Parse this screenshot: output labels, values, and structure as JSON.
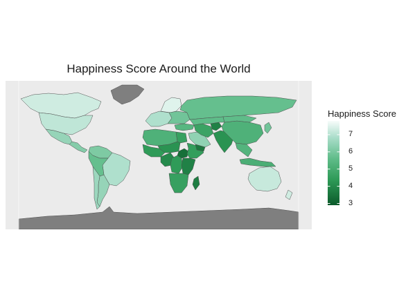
{
  "title": "Happiness Score Around the World",
  "legend": {
    "title": "Happiness Score",
    "ticks": [
      "7",
      "6",
      "5",
      "4",
      "3"
    ],
    "tick_values": [
      7,
      6,
      5,
      4,
      3
    ],
    "range": [
      2.9,
      7.8
    ],
    "colors": {
      "low": "#0b5a2a",
      "mid_low": "#2e9a57",
      "mid": "#5fbc89",
      "mid_high": "#a9ddc9",
      "high": "#f7fcfb",
      "no_data": "#7f7f7f",
      "panel": "#ebebeb"
    }
  },
  "regions": [
    {
      "name": "Canada",
      "score": 7.3
    },
    {
      "name": "United States",
      "score": 7.1
    },
    {
      "name": "Mexico",
      "score": 6.5
    },
    {
      "name": "Central America",
      "score": 6.2
    },
    {
      "name": "Colombia / Venezuela",
      "score": 6.1
    },
    {
      "name": "Brazil",
      "score": 6.9
    },
    {
      "name": "Peru / Bolivia",
      "score": 5.7
    },
    {
      "name": "Argentina",
      "score": 6.5
    },
    {
      "name": "Chile",
      "score": 6.6
    },
    {
      "name": "Greenland",
      "score": null
    },
    {
      "name": "Western Europe",
      "score": 6.9
    },
    {
      "name": "Scandinavia",
      "score": 7.5
    },
    {
      "name": "Eastern Europe",
      "score": 5.9
    },
    {
      "name": "Russia",
      "score": 5.7
    },
    {
      "name": "Turkey",
      "score": 5.4
    },
    {
      "name": "North Africa",
      "score": 5.2
    },
    {
      "name": "Egypt",
      "score": 4.6
    },
    {
      "name": "West Africa",
      "score": 4.4
    },
    {
      "name": "Sahel",
      "score": 4.2
    },
    {
      "name": "Central Africa",
      "score": 4.0
    },
    {
      "name": "South Sudan",
      "score": 3.4
    },
    {
      "name": "Ethiopia / Horn",
      "score": 4.5
    },
    {
      "name": "DR Congo",
      "score": 4.4
    },
    {
      "name": "East Africa",
      "score": 3.8
    },
    {
      "name": "Southern Africa",
      "score": 4.6
    },
    {
      "name": "Madagascar",
      "score": 3.7
    },
    {
      "name": "Arabian Peninsula",
      "score": 6.4
    },
    {
      "name": "Yemen",
      "score": 3.6
    },
    {
      "name": "Iran",
      "score": 4.7
    },
    {
      "name": "Afghanistan",
      "score": 3.8
    },
    {
      "name": "Central Asia",
      "score": 5.6
    },
    {
      "name": "India",
      "score": 4.2
    },
    {
      "name": "China",
      "score": 5.2
    },
    {
      "name": "Mongolia",
      "score": 5.6
    },
    {
      "name": "Japan",
      "score": 5.9
    },
    {
      "name": "Southeast Asia",
      "score": 5.3
    },
    {
      "name": "Indonesia",
      "score": 5.1
    },
    {
      "name": "Australia",
      "score": 7.2
    },
    {
      "name": "New Zealand",
      "score": 7.3
    },
    {
      "name": "Antarctica",
      "score": null
    }
  ]
}
